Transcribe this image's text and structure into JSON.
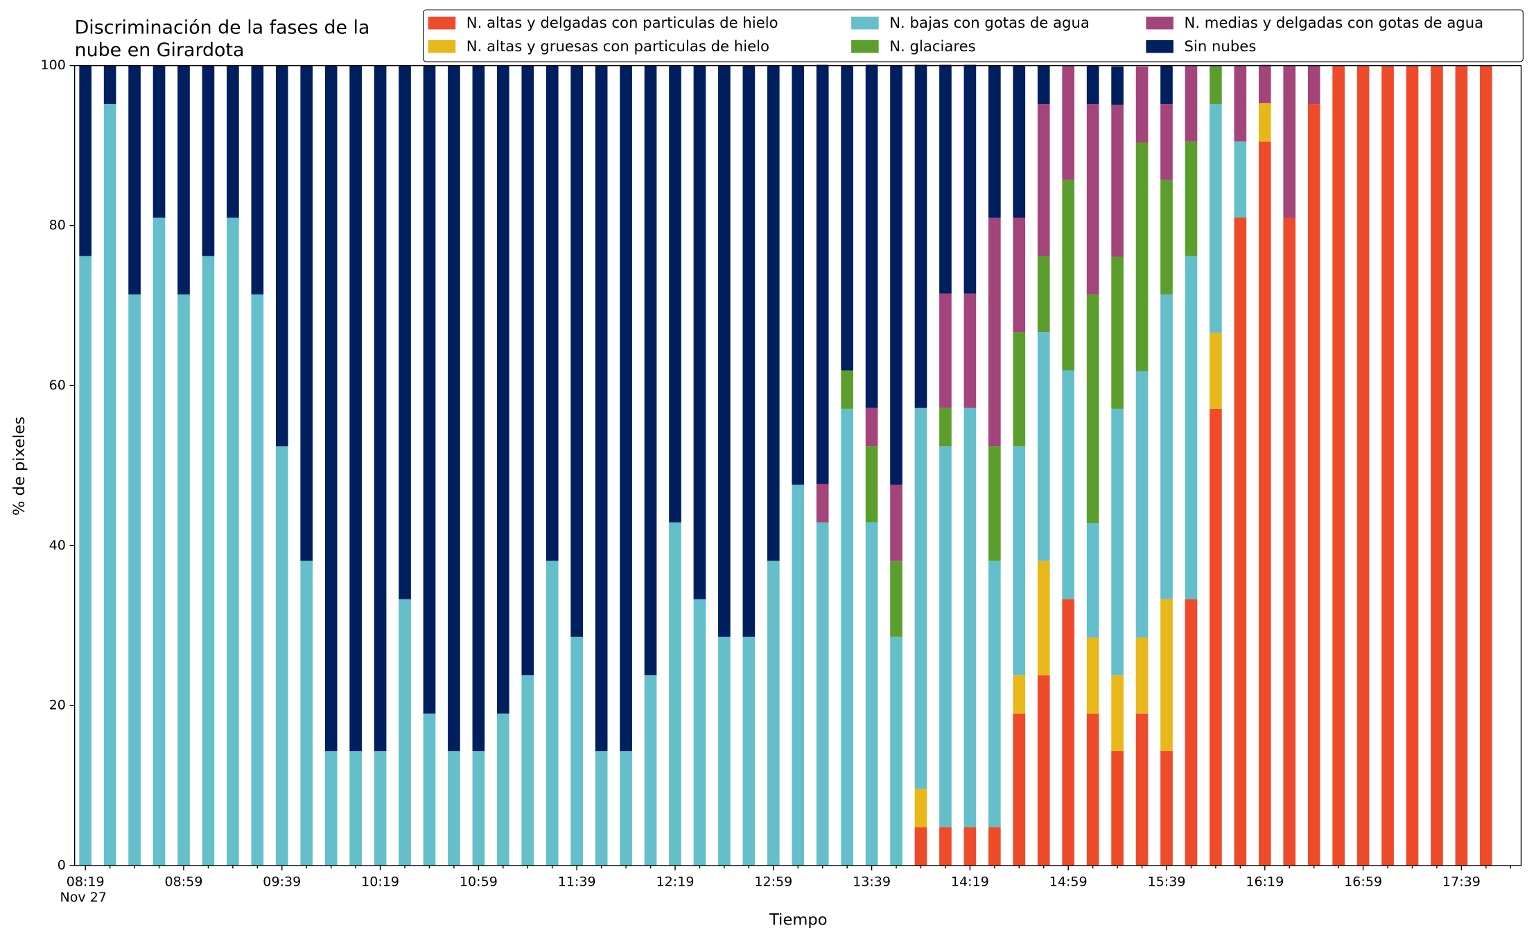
{
  "chart_data": {
    "type": "stacked_bar",
    "title_lines": [
      "Discriminación de la fases de la",
      "nube en Girardota"
    ],
    "xlabel": "Tiempo",
    "ylabel": "% de pixeles",
    "date_label": "Nov 27",
    "categories": [
      "08:19",
      null,
      null,
      null,
      "08:59",
      null,
      null,
      null,
      "09:39",
      null,
      null,
      null,
      "10:19",
      null,
      null,
      null,
      "10:59",
      null,
      null,
      null,
      "11:39",
      null,
      null,
      null,
      "12:19",
      null,
      null,
      null,
      "12:59",
      null,
      null,
      null,
      "13:39",
      null,
      null,
      null,
      "14:19",
      null,
      null,
      null,
      "14:59",
      null,
      null,
      null,
      "15:39",
      null,
      null,
      null,
      "16:19",
      null,
      null,
      null,
      "16:59",
      null,
      null,
      null,
      "17:39",
      null
    ],
    "series": [
      {
        "name": "N. altas y delgadas con particulas de hielo",
        "color": "#ee4b2b",
        "values": [
          0,
          0,
          0,
          0,
          0,
          0,
          0,
          0,
          0,
          0,
          0,
          0,
          0,
          0,
          0,
          0,
          0,
          0,
          0,
          0,
          0,
          0,
          0,
          0,
          0,
          0,
          0,
          0,
          0,
          0,
          0,
          0,
          0,
          0,
          4.8,
          4.8,
          4.8,
          4.8,
          19,
          23.8,
          33.3,
          19,
          14.3,
          19,
          14.3,
          33.3,
          57.1,
          81,
          90.5,
          81,
          95.2,
          100,
          100,
          100,
          100,
          100,
          100,
          100
        ]
      },
      {
        "name": "N. altas y gruesas con particulas de hielo",
        "color": "#e8b81a",
        "values": [
          0,
          0,
          0,
          0,
          0,
          0,
          0,
          0,
          0,
          0,
          0,
          0,
          0,
          0,
          0,
          0,
          0,
          0,
          0,
          0,
          0,
          0,
          0,
          0,
          0,
          0,
          0,
          0,
          0,
          0,
          0,
          0,
          0,
          0,
          4.8,
          0,
          0,
          0,
          4.8,
          14.3,
          0,
          9.5,
          9.5,
          9.5,
          19,
          0,
          9.5,
          0,
          4.8,
          0,
          0,
          0,
          0,
          0,
          0,
          0,
          0,
          0
        ]
      },
      {
        "name": "N. bajas con gotas de agua",
        "color": "#65bfca",
        "values": [
          76.2,
          95.2,
          71.4,
          81,
          71.4,
          76.2,
          81,
          71.4,
          52.4,
          38.1,
          14.3,
          14.3,
          14.3,
          33.3,
          19,
          14.3,
          14.3,
          19,
          23.8,
          38.1,
          28.6,
          14.3,
          14.3,
          23.8,
          42.9,
          33.3,
          28.6,
          28.6,
          38.1,
          47.6,
          42.9,
          57.1,
          42.9,
          28.6,
          47.6,
          47.6,
          52.4,
          33.3,
          28.6,
          28.6,
          28.6,
          14.3,
          33.3,
          33.3,
          38.1,
          42.9,
          28.6,
          9.5,
          0,
          0,
          0,
          0,
          0,
          0,
          0,
          0,
          0,
          0
        ]
      },
      {
        "name": "N. glaciares",
        "color": "#5c9e2e",
        "values": [
          0,
          0,
          0,
          0,
          0,
          0,
          0,
          0,
          0,
          0,
          0,
          0,
          0,
          0,
          0,
          0,
          0,
          0,
          0,
          0,
          0,
          0,
          0,
          0,
          0,
          0,
          0,
          0,
          0,
          0,
          0,
          4.8,
          9.5,
          9.5,
          0,
          4.8,
          0,
          14.3,
          14.3,
          9.5,
          23.8,
          28.6,
          19,
          28.6,
          14.3,
          14.3,
          4.8,
          0,
          0,
          0,
          0,
          0,
          0,
          0,
          0,
          0,
          0,
          0
        ]
      },
      {
        "name": "N. medias y delgadas con gotas de agua",
        "color": "#a3447a",
        "values": [
          0,
          0,
          0,
          0,
          0,
          0,
          0,
          0,
          0,
          0,
          0,
          0,
          0,
          0,
          0,
          0,
          0,
          0,
          0,
          0,
          0,
          0,
          0,
          0,
          0,
          0,
          0,
          0,
          0,
          0,
          4.8,
          0,
          4.8,
          9.5,
          0,
          14.3,
          14.3,
          28.6,
          14.3,
          19,
          14.3,
          23.8,
          19,
          9.5,
          9.5,
          9.5,
          0,
          9.5,
          4.8,
          19,
          4.8,
          0,
          0,
          0,
          0,
          0,
          0,
          0
        ]
      },
      {
        "name": "Sin nubes",
        "color": "#001f5e",
        "values": [
          23.8,
          4.8,
          28.6,
          19,
          28.6,
          23.8,
          19,
          28.6,
          47.6,
          61.9,
          85.7,
          85.7,
          85.7,
          66.7,
          81,
          85.7,
          85.7,
          81,
          76.2,
          61.9,
          71.4,
          85.7,
          85.7,
          76.2,
          57.1,
          66.7,
          71.4,
          71.4,
          61.9,
          52.4,
          52.4,
          38.1,
          42.9,
          52.4,
          42.9,
          28.6,
          28.6,
          19,
          19,
          4.8,
          0,
          4.8,
          4.8,
          0,
          4.8,
          0,
          0,
          0,
          0,
          0,
          0,
          0,
          0,
          0,
          0,
          0,
          0,
          0
        ]
      }
    ],
    "ylim": [
      0,
      100
    ],
    "yticks": [
      0,
      20,
      40,
      60,
      80,
      100
    ]
  }
}
